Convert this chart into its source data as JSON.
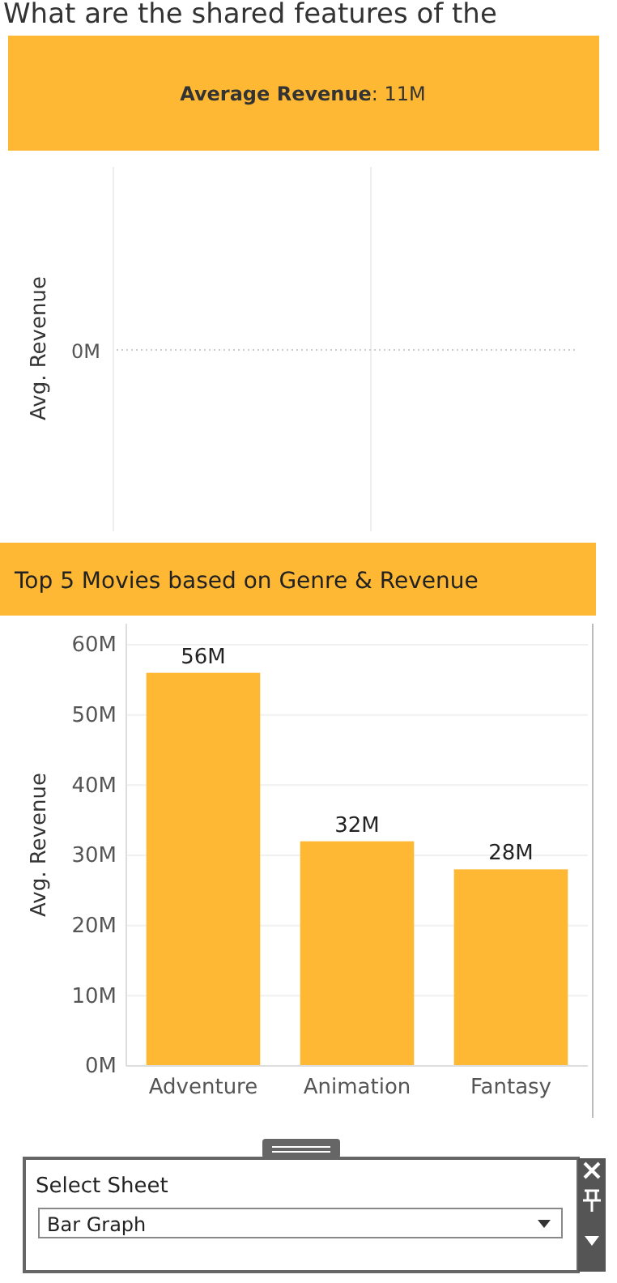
{
  "chart_data": [
    {
      "type": "other",
      "title": "Average Revenue: 11M",
      "ylabel": "Avg. Revenue",
      "annotations": [
        "What are the shared features of the",
        "0M"
      ]
    },
    {
      "type": "bar",
      "title": "Top 5 Movies based on Genre & Revenue",
      "ylabel": "Avg. Revenue",
      "categories": [
        "Adventure",
        "Animation",
        "Fantasy"
      ],
      "values": [
        56,
        32,
        28
      ],
      "color": "#ffb833",
      "value_labels": [
        "56M",
        "32M",
        "28M"
      ],
      "ylim": [
        0,
        63
      ],
      "yticks": [
        {
          "value": 0,
          "label": "0M"
        },
        {
          "value": 10,
          "label": "10M"
        },
        {
          "value": 20,
          "label": "20M"
        },
        {
          "value": 30,
          "label": "30M"
        },
        {
          "value": 40,
          "label": "40M"
        },
        {
          "value": 50,
          "label": "50M"
        },
        {
          "value": 60,
          "label": "60M"
        }
      ],
      "grid": "y",
      "annotations": [
        "Select Sheet",
        "Bar Graph"
      ]
    }
  ]
}
